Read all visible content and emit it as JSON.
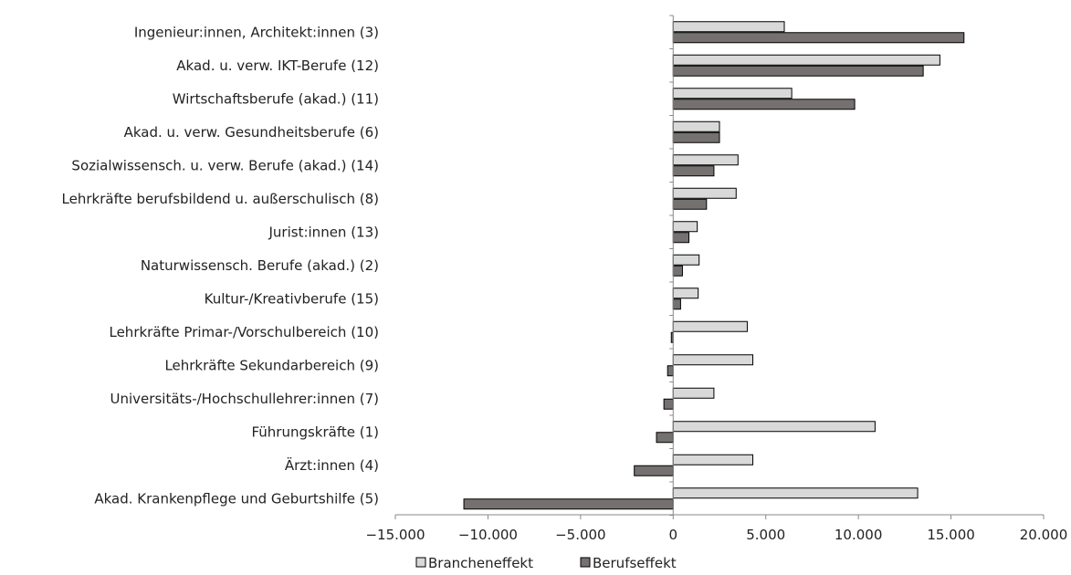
{
  "chart_data": {
    "type": "bar",
    "orientation": "horizontal",
    "categories": [
      "Ingenieur:innen, Architekt:innen (3)",
      "Akad. u. verw. IKT-Berufe (12)",
      "Wirtschaftsberufe (akad.) (11)",
      "Akad. u. verw. Gesundheitsberufe (6)",
      "Sozialwissensch. u. verw. Berufe (akad.) (14)",
      "Lehrkräfte berufsbildend u. außerschulisch (8)",
      "Jurist:innen (13)",
      "Naturwissensch.  Berufe (akad.) (2)",
      "Kultur-/Kreativberufe (15)",
      "Lehrkräfte Primar-/Vorschulbereich (10)",
      "Lehrkräfte Sekundarbereich (9)",
      "Universitäts-/Hochschullehrer:innen (7)",
      "Führungskräfte (1)",
      "Ärzt:innen (4)",
      "Akad. Krankenpflege und Geburtshilfe (5)"
    ],
    "series": [
      {
        "name": "Brancheneffekt",
        "color": "#d9d9d9",
        "values": [
          6000,
          14400,
          6400,
          2500,
          3500,
          3400,
          1300,
          1400,
          1350,
          4000,
          4300,
          2200,
          10900,
          4300,
          13200
        ]
      },
      {
        "name": "Berufseffekt",
        "color": "#767171",
        "values": [
          15700,
          13500,
          9800,
          2500,
          2200,
          1800,
          850,
          500,
          400,
          -100,
          -300,
          -500,
          -900,
          -2100,
          -11300
        ]
      }
    ],
    "xlim": [
      -15000,
      20000
    ],
    "xticks": [
      -15000,
      -10000,
      -5000,
      0,
      5000,
      10000,
      15000,
      20000
    ],
    "xtick_labels": [
      "−15.000",
      "−10.000",
      "−5.000",
      "0",
      "5.000",
      "10.000",
      "15.000",
      "20.000"
    ],
    "grid": false,
    "legend_position": "bottom"
  }
}
